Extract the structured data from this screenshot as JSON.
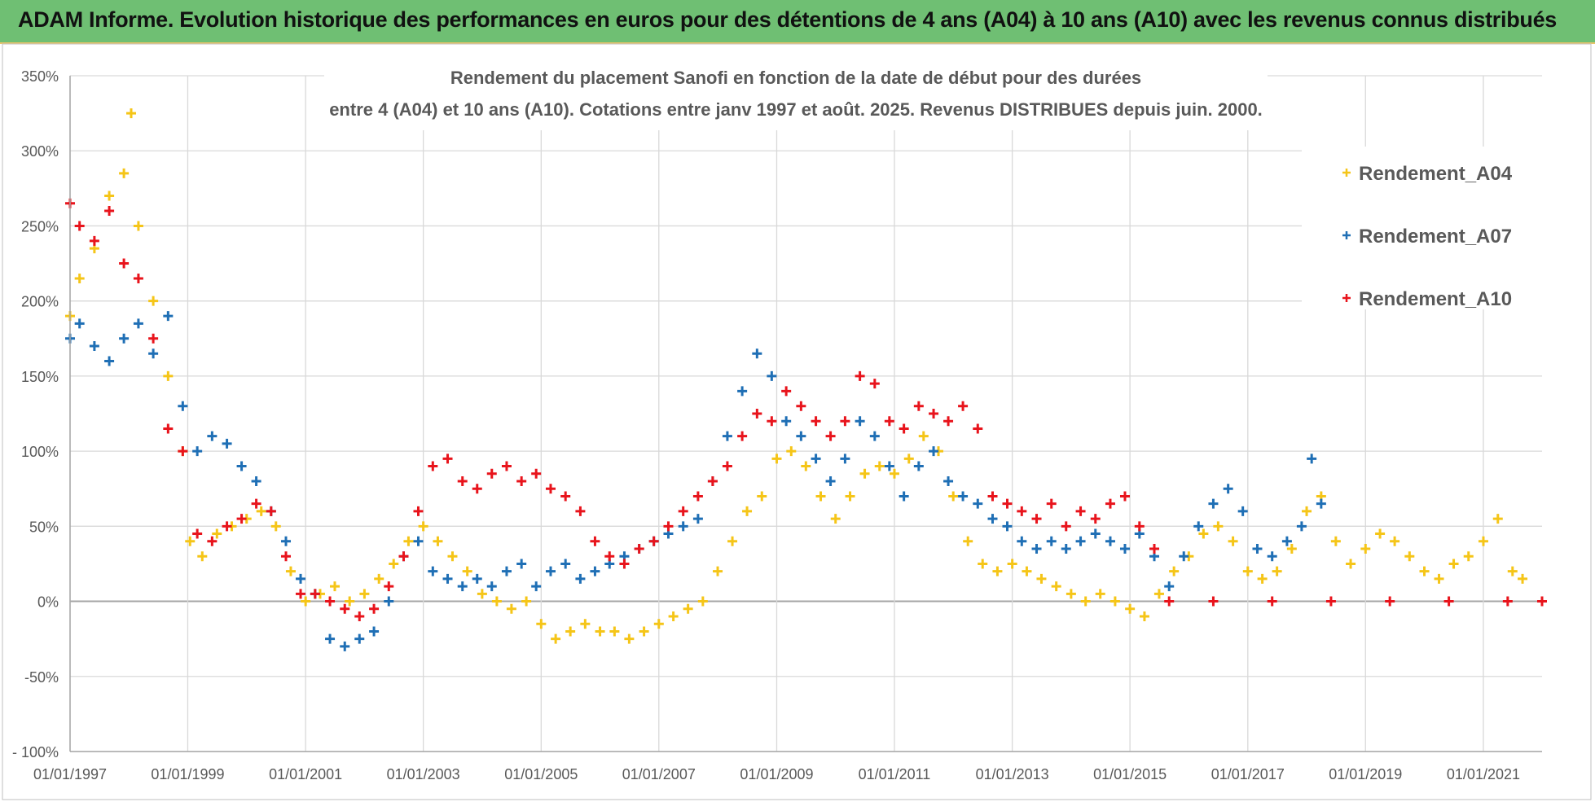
{
  "banner": {
    "text": "ADAM Informe. Evolution historique des performances en euros pour des détentions de 4 ans (A04) à 10 ans (A10) avec les revenus connus distribués",
    "color": "#6fbf73"
  },
  "chart_data": {
    "type": "scatter",
    "title_line1": "Rendement du placement Sanofi en fonction de la date de début pour des durées",
    "title_line2": "entre 4 (A04) et 10 ans (A10).  Cotations entre janv 1997 et août. 2025. Revenus DISTRIBUES depuis juin. 2000.",
    "ylim": [
      -100,
      350
    ],
    "xlim": [
      "1997-01-01",
      "2021-12-31"
    ],
    "y_ticks": [
      "350%",
      "300%",
      "250%",
      "200%",
      "150%",
      "100%",
      "50%",
      "0%",
      "-50%",
      "- 100%"
    ],
    "x_ticks": [
      "01/01/1997",
      "01/01/1999",
      "01/01/2001",
      "01/01/2003",
      "01/01/2005",
      "01/01/2007",
      "01/01/2009",
      "01/01/2011",
      "01/01/2013",
      "01/01/2015",
      "01/01/2017",
      "01/01/2019",
      "01/01/2021"
    ],
    "grid": true,
    "legend_position": "top-right",
    "series": [
      {
        "name": "Rendement_A04",
        "color": "#f5c518",
        "points": [
          [
            "1997-01-01",
            190
          ],
          [
            "1997-03-01",
            215
          ],
          [
            "1997-06-01",
            235
          ],
          [
            "1997-09-01",
            270
          ],
          [
            "1997-12-01",
            285
          ],
          [
            "1998-01-15",
            325
          ],
          [
            "1998-03-01",
            250
          ],
          [
            "1998-06-01",
            200
          ],
          [
            "1998-09-01",
            150
          ],
          [
            "1998-12-01",
            100
          ],
          [
            "1999-01-15",
            40
          ],
          [
            "1999-04-01",
            30
          ],
          [
            "1999-07-01",
            45
          ],
          [
            "1999-10-01",
            50
          ],
          [
            "2000-01-01",
            55
          ],
          [
            "2000-04-01",
            60
          ],
          [
            "2000-07-01",
            50
          ],
          [
            "2000-10-01",
            20
          ],
          [
            "2001-01-01",
            0
          ],
          [
            "2001-04-01",
            5
          ],
          [
            "2001-07-01",
            10
          ],
          [
            "2001-10-01",
            0
          ],
          [
            "2002-01-01",
            5
          ],
          [
            "2002-04-01",
            15
          ],
          [
            "2002-07-01",
            25
          ],
          [
            "2002-10-01",
            40
          ],
          [
            "2003-01-01",
            50
          ],
          [
            "2003-04-01",
            40
          ],
          [
            "2003-07-01",
            30
          ],
          [
            "2003-10-01",
            20
          ],
          [
            "2004-01-01",
            5
          ],
          [
            "2004-04-01",
            0
          ],
          [
            "2004-07-01",
            -5
          ],
          [
            "2004-10-01",
            0
          ],
          [
            "2005-01-01",
            -15
          ],
          [
            "2005-04-01",
            -25
          ],
          [
            "2005-07-01",
            -20
          ],
          [
            "2005-10-01",
            -15
          ],
          [
            "2006-01-01",
            -20
          ],
          [
            "2006-04-01",
            -20
          ],
          [
            "2006-07-01",
            -25
          ],
          [
            "2006-10-01",
            -20
          ],
          [
            "2007-01-01",
            -15
          ],
          [
            "2007-04-01",
            -10
          ],
          [
            "2007-07-01",
            -5
          ],
          [
            "2007-10-01",
            0
          ],
          [
            "2008-01-01",
            20
          ],
          [
            "2008-04-01",
            40
          ],
          [
            "2008-07-01",
            60
          ],
          [
            "2008-10-01",
            70
          ],
          [
            "2009-01-01",
            95
          ],
          [
            "2009-04-01",
            100
          ],
          [
            "2009-07-01",
            90
          ],
          [
            "2009-10-01",
            70
          ],
          [
            "2010-01-01",
            55
          ],
          [
            "2010-04-01",
            70
          ],
          [
            "2010-07-01",
            85
          ],
          [
            "2010-10-01",
            90
          ],
          [
            "2011-01-01",
            85
          ],
          [
            "2011-04-01",
            95
          ],
          [
            "2011-07-01",
            110
          ],
          [
            "2011-10-01",
            100
          ],
          [
            "2012-01-01",
            70
          ],
          [
            "2012-04-01",
            40
          ],
          [
            "2012-07-01",
            25
          ],
          [
            "2012-10-01",
            20
          ],
          [
            "2013-01-01",
            25
          ],
          [
            "2013-04-01",
            20
          ],
          [
            "2013-07-01",
            15
          ],
          [
            "2013-10-01",
            10
          ],
          [
            "2014-01-01",
            5
          ],
          [
            "2014-04-01",
            0
          ],
          [
            "2014-07-01",
            5
          ],
          [
            "2014-10-01",
            0
          ],
          [
            "2015-01-01",
            -5
          ],
          [
            "2015-04-01",
            -10
          ],
          [
            "2015-07-01",
            5
          ],
          [
            "2015-10-01",
            20
          ],
          [
            "2016-01-01",
            30
          ],
          [
            "2016-04-01",
            45
          ],
          [
            "2016-07-01",
            50
          ],
          [
            "2016-10-01",
            40
          ],
          [
            "2017-01-01",
            20
          ],
          [
            "2017-04-01",
            15
          ],
          [
            "2017-07-01",
            20
          ],
          [
            "2017-10-01",
            35
          ],
          [
            "2018-01-01",
            60
          ],
          [
            "2018-04-01",
            70
          ],
          [
            "2018-07-01",
            40
          ],
          [
            "2018-10-01",
            25
          ],
          [
            "2019-01-01",
            35
          ],
          [
            "2019-04-01",
            45
          ],
          [
            "2019-07-01",
            40
          ],
          [
            "2019-10-01",
            30
          ],
          [
            "2020-01-01",
            20
          ],
          [
            "2020-04-01",
            15
          ],
          [
            "2020-07-01",
            25
          ],
          [
            "2020-10-01",
            30
          ],
          [
            "2021-01-01",
            40
          ],
          [
            "2021-04-01",
            55
          ],
          [
            "2021-07-01",
            20
          ],
          [
            "2021-09-01",
            15
          ]
        ]
      },
      {
        "name": "Rendement_A07",
        "color": "#1f6fb5",
        "points": [
          [
            "1997-01-01",
            175
          ],
          [
            "1997-03-01",
            185
          ],
          [
            "1997-06-01",
            170
          ],
          [
            "1997-09-01",
            160
          ],
          [
            "1997-12-01",
            175
          ],
          [
            "1998-03-01",
            185
          ],
          [
            "1998-06-01",
            165
          ],
          [
            "1998-09-01",
            190
          ],
          [
            "1998-12-01",
            130
          ],
          [
            "1999-03-01",
            100
          ],
          [
            "1999-06-01",
            110
          ],
          [
            "1999-09-01",
            105
          ],
          [
            "1999-12-01",
            90
          ],
          [
            "2000-03-01",
            80
          ],
          [
            "2000-06-01",
            60
          ],
          [
            "2000-09-01",
            40
          ],
          [
            "2000-12-01",
            15
          ],
          [
            "2001-03-01",
            5
          ],
          [
            "2001-06-01",
            -25
          ],
          [
            "2001-09-01",
            -30
          ],
          [
            "2001-12-01",
            -25
          ],
          [
            "2002-03-01",
            -20
          ],
          [
            "2002-06-01",
            0
          ],
          [
            "2002-09-01",
            30
          ],
          [
            "2002-12-01",
            40
          ],
          [
            "2003-03-01",
            20
          ],
          [
            "2003-06-01",
            15
          ],
          [
            "2003-09-01",
            10
          ],
          [
            "2003-12-01",
            15
          ],
          [
            "2004-03-01",
            10
          ],
          [
            "2004-06-01",
            20
          ],
          [
            "2004-09-01",
            25
          ],
          [
            "2004-12-01",
            10
          ],
          [
            "2005-03-01",
            20
          ],
          [
            "2005-06-01",
            25
          ],
          [
            "2005-09-01",
            15
          ],
          [
            "2005-12-01",
            20
          ],
          [
            "2006-03-01",
            25
          ],
          [
            "2006-06-01",
            30
          ],
          [
            "2006-09-01",
            35
          ],
          [
            "2006-12-01",
            40
          ],
          [
            "2007-03-01",
            45
          ],
          [
            "2007-06-01",
            50
          ],
          [
            "2007-09-01",
            55
          ],
          [
            "2007-12-01",
            80
          ],
          [
            "2008-03-01",
            110
          ],
          [
            "2008-06-01",
            140
          ],
          [
            "2008-09-01",
            165
          ],
          [
            "2008-12-01",
            150
          ],
          [
            "2009-03-01",
            120
          ],
          [
            "2009-06-01",
            110
          ],
          [
            "2009-09-01",
            95
          ],
          [
            "2009-12-01",
            80
          ],
          [
            "2010-03-01",
            95
          ],
          [
            "2010-06-01",
            120
          ],
          [
            "2010-09-01",
            110
          ],
          [
            "2010-12-01",
            90
          ],
          [
            "2011-03-01",
            70
          ],
          [
            "2011-06-01",
            90
          ],
          [
            "2011-09-01",
            100
          ],
          [
            "2011-12-01",
            80
          ],
          [
            "2012-03-01",
            70
          ],
          [
            "2012-06-01",
            65
          ],
          [
            "2012-09-01",
            55
          ],
          [
            "2012-12-01",
            50
          ],
          [
            "2013-03-01",
            40
          ],
          [
            "2013-06-01",
            35
          ],
          [
            "2013-09-01",
            40
          ],
          [
            "2013-12-01",
            35
          ],
          [
            "2014-03-01",
            40
          ],
          [
            "2014-06-01",
            45
          ],
          [
            "2014-09-01",
            40
          ],
          [
            "2014-12-01",
            35
          ],
          [
            "2015-03-01",
            45
          ],
          [
            "2015-06-01",
            30
          ],
          [
            "2015-09-01",
            10
          ],
          [
            "2015-12-01",
            30
          ],
          [
            "2016-03-01",
            50
          ],
          [
            "2016-06-01",
            65
          ],
          [
            "2016-09-01",
            75
          ],
          [
            "2016-12-01",
            60
          ],
          [
            "2017-03-01",
            35
          ],
          [
            "2017-06-01",
            30
          ],
          [
            "2017-09-01",
            40
          ],
          [
            "2017-12-01",
            50
          ],
          [
            "2018-02-01",
            95
          ],
          [
            "2018-04-01",
            65
          ]
        ]
      },
      {
        "name": "Rendement_A10",
        "color": "#e8141c",
        "points": [
          [
            "1997-01-01",
            265
          ],
          [
            "1997-03-01",
            250
          ],
          [
            "1997-06-01",
            240
          ],
          [
            "1997-09-01",
            260
          ],
          [
            "1997-12-01",
            225
          ],
          [
            "1998-03-01",
            215
          ],
          [
            "1998-06-01",
            175
          ],
          [
            "1998-09-01",
            115
          ],
          [
            "1998-12-01",
            100
          ],
          [
            "1999-03-01",
            45
          ],
          [
            "1999-06-01",
            40
          ],
          [
            "1999-09-01",
            50
          ],
          [
            "1999-12-01",
            55
          ],
          [
            "2000-03-01",
            65
          ],
          [
            "2000-06-01",
            60
          ],
          [
            "2000-09-01",
            30
          ],
          [
            "2000-12-01",
            5
          ],
          [
            "2001-03-01",
            5
          ],
          [
            "2001-06-01",
            0
          ],
          [
            "2001-09-01",
            -5
          ],
          [
            "2001-12-01",
            -10
          ],
          [
            "2002-03-01",
            -5
          ],
          [
            "2002-06-01",
            10
          ],
          [
            "2002-09-01",
            30
          ],
          [
            "2002-12-01",
            60
          ],
          [
            "2003-03-01",
            90
          ],
          [
            "2003-06-01",
            95
          ],
          [
            "2003-09-01",
            80
          ],
          [
            "2003-12-01",
            75
          ],
          [
            "2004-03-01",
            85
          ],
          [
            "2004-06-01",
            90
          ],
          [
            "2004-09-01",
            80
          ],
          [
            "2004-12-01",
            85
          ],
          [
            "2005-03-01",
            75
          ],
          [
            "2005-06-01",
            70
          ],
          [
            "2005-09-01",
            60
          ],
          [
            "2005-12-01",
            40
          ],
          [
            "2006-03-01",
            30
          ],
          [
            "2006-06-01",
            25
          ],
          [
            "2006-09-01",
            35
          ],
          [
            "2006-12-01",
            40
          ],
          [
            "2007-03-01",
            50
          ],
          [
            "2007-06-01",
            60
          ],
          [
            "2007-09-01",
            70
          ],
          [
            "2007-12-01",
            80
          ],
          [
            "2008-03-01",
            90
          ],
          [
            "2008-06-01",
            110
          ],
          [
            "2008-09-01",
            125
          ],
          [
            "2008-12-01",
            120
          ],
          [
            "2009-03-01",
            140
          ],
          [
            "2009-06-01",
            130
          ],
          [
            "2009-09-01",
            120
          ],
          [
            "2009-12-01",
            110
          ],
          [
            "2010-03-01",
            120
          ],
          [
            "2010-06-01",
            150
          ],
          [
            "2010-09-01",
            145
          ],
          [
            "2010-12-01",
            120
          ],
          [
            "2011-03-01",
            115
          ],
          [
            "2011-06-01",
            130
          ],
          [
            "2011-09-01",
            125
          ],
          [
            "2011-12-01",
            120
          ],
          [
            "2012-03-01",
            130
          ],
          [
            "2012-06-01",
            115
          ],
          [
            "2012-09-01",
            70
          ],
          [
            "2012-12-01",
            65
          ],
          [
            "2013-03-01",
            60
          ],
          [
            "2013-06-01",
            55
          ],
          [
            "2013-09-01",
            65
          ],
          [
            "2013-12-01",
            50
          ],
          [
            "2014-03-01",
            60
          ],
          [
            "2014-06-01",
            55
          ],
          [
            "2014-09-01",
            65
          ],
          [
            "2014-12-01",
            70
          ],
          [
            "2015-03-01",
            50
          ],
          [
            "2015-06-01",
            35
          ],
          [
            "2015-09-01",
            0
          ],
          [
            "2016-06-01",
            0
          ],
          [
            "2017-06-01",
            0
          ],
          [
            "2018-06-01",
            0
          ],
          [
            "2019-06-01",
            0
          ],
          [
            "2020-06-01",
            0
          ],
          [
            "2021-06-01",
            0
          ],
          [
            "2021-12-31",
            0
          ]
        ]
      }
    ]
  }
}
